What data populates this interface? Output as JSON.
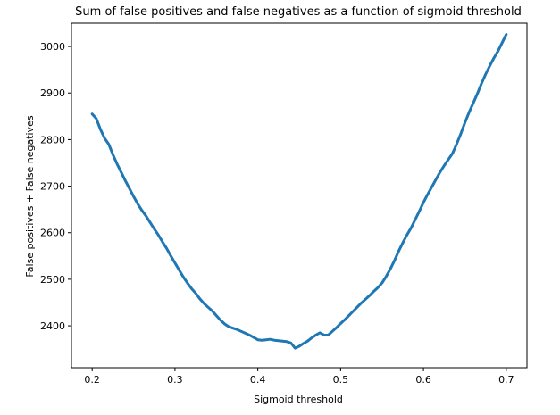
{
  "chart_data": {
    "type": "line",
    "title": "Sum of false positives and false negatives as a function of sigmoid threshold",
    "xlabel": "Sigmoid threshold",
    "ylabel": "False positives + False negatives",
    "xlim": [
      0.175,
      0.725
    ],
    "ylim": [
      2310,
      3050
    ],
    "x_ticks": [
      0.2,
      0.3,
      0.4,
      0.5,
      0.6,
      0.7
    ],
    "x_tick_labels": [
      "0.2",
      "0.3",
      "0.4",
      "0.5",
      "0.6",
      "0.7"
    ],
    "y_ticks": [
      2400,
      2500,
      2600,
      2700,
      2800,
      2900,
      3000
    ],
    "y_tick_labels": [
      "2400",
      "2500",
      "2600",
      "2700",
      "2800",
      "2900",
      "3000"
    ],
    "grid": false,
    "line_color": "#1f77b4",
    "series": [
      {
        "x": [
          0.2,
          0.205,
          0.21,
          0.215,
          0.22,
          0.225,
          0.23,
          0.235,
          0.24,
          0.245,
          0.25,
          0.255,
          0.26,
          0.265,
          0.27,
          0.275,
          0.28,
          0.285,
          0.29,
          0.295,
          0.3,
          0.305,
          0.31,
          0.315,
          0.32,
          0.325,
          0.33,
          0.335,
          0.34,
          0.345,
          0.35,
          0.355,
          0.36,
          0.365,
          0.37,
          0.375,
          0.38,
          0.385,
          0.39,
          0.395,
          0.4,
          0.405,
          0.41,
          0.415,
          0.42,
          0.425,
          0.43,
          0.435,
          0.44,
          0.445,
          0.45,
          0.455,
          0.46,
          0.465,
          0.47,
          0.475,
          0.48,
          0.485,
          0.49,
          0.495,
          0.5,
          0.505,
          0.51,
          0.515,
          0.52,
          0.525,
          0.53,
          0.535,
          0.54,
          0.545,
          0.55,
          0.555,
          0.56,
          0.565,
          0.57,
          0.575,
          0.58,
          0.585,
          0.59,
          0.595,
          0.6,
          0.605,
          0.61,
          0.615,
          0.62,
          0.625,
          0.63,
          0.635,
          0.64,
          0.645,
          0.65,
          0.655,
          0.66,
          0.665,
          0.67,
          0.675,
          0.68,
          0.685,
          0.69,
          0.695,
          0.7
        ],
        "values": [
          2855,
          2845,
          2822,
          2803,
          2790,
          2768,
          2748,
          2730,
          2712,
          2695,
          2678,
          2662,
          2648,
          2636,
          2622,
          2608,
          2595,
          2580,
          2566,
          2550,
          2535,
          2520,
          2505,
          2492,
          2480,
          2470,
          2458,
          2448,
          2440,
          2432,
          2422,
          2412,
          2404,
          2398,
          2395,
          2392,
          2388,
          2384,
          2380,
          2375,
          2370,
          2369,
          2370,
          2371,
          2369,
          2368,
          2367,
          2366,
          2363,
          2352,
          2356,
          2362,
          2367,
          2374,
          2380,
          2385,
          2380,
          2380,
          2388,
          2396,
          2405,
          2413,
          2422,
          2431,
          2440,
          2449,
          2457,
          2465,
          2474,
          2482,
          2492,
          2506,
          2522,
          2540,
          2560,
          2578,
          2595,
          2610,
          2628,
          2646,
          2665,
          2682,
          2698,
          2714,
          2730,
          2744,
          2757,
          2770,
          2790,
          2812,
          2836,
          2858,
          2878,
          2898,
          2920,
          2940,
          2958,
          2975,
          2990,
          3008,
          3026
        ]
      }
    ]
  }
}
